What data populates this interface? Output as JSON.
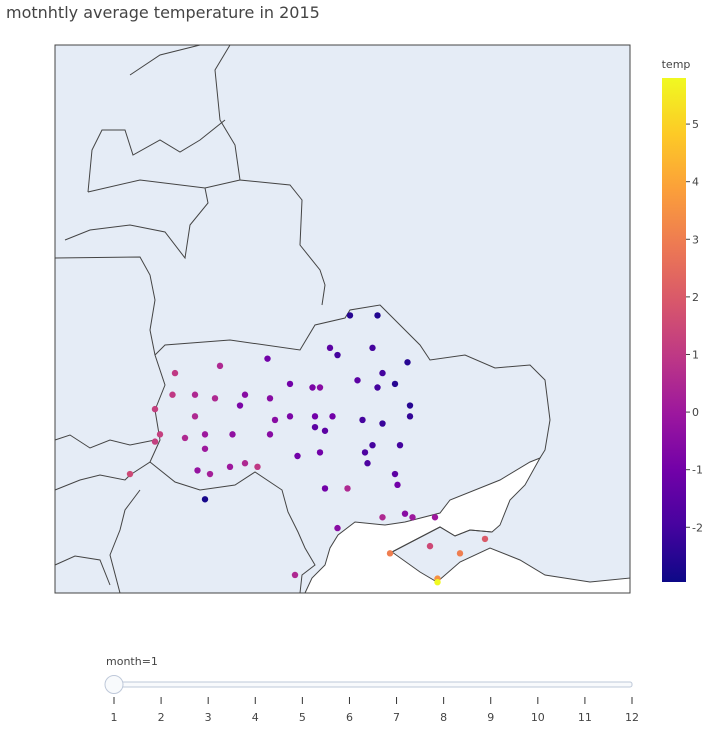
{
  "chart_data": {
    "type": "scatter_geo",
    "title": "motnhtly average temperature in 2015",
    "x": [
      32.8,
      33.9,
      32.0,
      32.3,
      33.7,
      35.1,
      29.5,
      27.6,
      25.8,
      34.1,
      33.1,
      33.9,
      34.6,
      30.4,
      31.3,
      31.6,
      25.7,
      26.6,
      27.4,
      28.6,
      29.6,
      28.4,
      25.0,
      35.2,
      32.1,
      31.4,
      30.4,
      29.8,
      33.3,
      34.1,
      35.2,
      31.4,
      31.8,
      26.6,
      25.2,
      26.2,
      27.0,
      28.1,
      29.6,
      33.7,
      34.8,
      33.4,
      31.6,
      25.0,
      27.0,
      30.7,
      28.6,
      29.1,
      28.0,
      33.5,
      26.7,
      27.2,
      24.0,
      34.6,
      31.8,
      32.7,
      34.7,
      27.0,
      35.0,
      34.1,
      35.3,
      36.2,
      32.3,
      38.2,
      36.0,
      37.2,
      34.4,
      30.6,
      36.3,
      36.3
    ],
    "y": [
      52.0,
      52.0,
      51.1,
      50.9,
      51.1,
      50.7,
      50.8,
      50.6,
      50.4,
      50.4,
      50.2,
      50.0,
      50.1,
      50.1,
      50.0,
      50.0,
      49.8,
      49.8,
      49.7,
      49.8,
      49.7,
      49.5,
      49.4,
      49.5,
      49.2,
      49.2,
      49.2,
      49.1,
      49.1,
      49.0,
      49.2,
      48.9,
      48.8,
      49.2,
      48.7,
      48.6,
      48.7,
      48.7,
      48.7,
      48.4,
      48.4,
      48.2,
      48.2,
      48.5,
      48.3,
      48.1,
      47.9,
      47.8,
      47.8,
      47.9,
      47.7,
      47.6,
      47.6,
      47.6,
      47.2,
      47.2,
      47.3,
      46.9,
      46.5,
      46.4,
      46.4,
      46.4,
      46.1,
      45.8,
      45.6,
      45.4,
      45.4,
      44.8,
      44.7,
      44.6
    ],
    "values": [
      -2.5,
      -2.6,
      -1.5,
      -2,
      -2,
      -2.5,
      -1,
      0.5,
      1,
      -2,
      -1.5,
      -2,
      -2.5,
      -1,
      -0.8,
      -0.5,
      1,
      0.5,
      0.5,
      -0.5,
      -0.5,
      -0.8,
      1.2,
      -2.5,
      -1,
      -1,
      -0.8,
      -0.5,
      -2,
      -2.2,
      -2.3,
      -1.5,
      -1.5,
      0.5,
      1.2,
      0.5,
      0,
      -0.3,
      -0.5,
      -2,
      -2,
      -1.8,
      -1,
      1.2,
      0,
      -1,
      0.5,
      1,
      0,
      -1.8,
      -0.2,
      0.2,
      1.5,
      -1.5,
      -1,
      0.5,
      -1,
      -2.8,
      -0.5,
      0.5,
      0,
      0,
      -0.5,
      2,
      1.5,
      3,
      3,
      0.5,
      3.5,
      5.8
    ],
    "xlim": [
      21,
      44
    ],
    "ylim": [
      44.3,
      59.5
    ],
    "colorbar": {
      "title": "temp",
      "clim": [
        -2.95,
        5.8
      ],
      "ticks": [
        -2,
        -1,
        0,
        1,
        2,
        3,
        4,
        5
      ],
      "colorscale": [
        "#0d0887",
        "#46039f",
        "#7201a8",
        "#9c179e",
        "#bd3786",
        "#d8576b",
        "#ed7953",
        "#fb9f3a",
        "#fdca26",
        "#f0f921"
      ]
    }
  },
  "slider": {
    "currentvalue": "month=1",
    "steps": [
      1,
      2,
      3,
      4,
      5,
      6,
      7,
      8,
      9,
      10,
      11,
      12
    ]
  }
}
